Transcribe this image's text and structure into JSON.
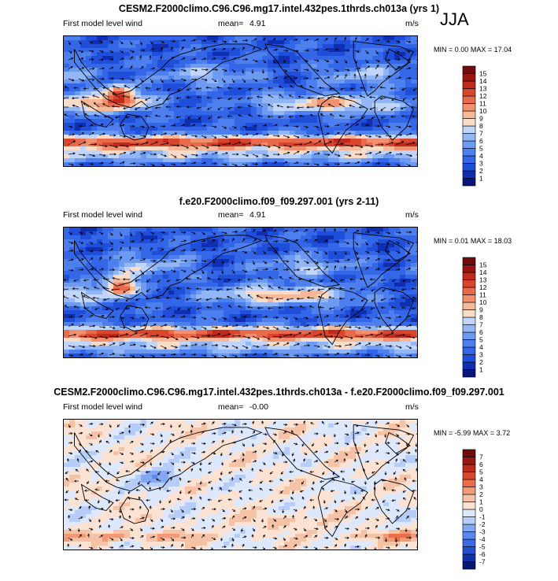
{
  "season": "JJA",
  "panels": [
    {
      "title": "CESM2.F2000climo.C96.C96.mg17.intel.432pes.1thrds.ch013a (yrs 1)",
      "variable": "First model level wind",
      "mean_label": "mean=",
      "mean": "4.91",
      "units": "m/s",
      "min_label": "MIN =",
      "min": "0.00",
      "max_label": "MAX =",
      "max": "17.04",
      "levels": [
        "1",
        "2",
        "3",
        "4",
        "5",
        "6",
        "7",
        "8",
        "9",
        "10",
        "11",
        "12",
        "13",
        "14",
        "15"
      ]
    },
    {
      "title": "f.e20.F2000climo.f09_f09.297.001 (yrs 2-11)",
      "variable": "First model level wind",
      "mean_label": "mean=",
      "mean": "4.91",
      "units": "m/s",
      "min_label": "MIN =",
      "min": "0.01",
      "max_label": "MAX =",
      "max": "18.03",
      "levels": [
        "1",
        "2",
        "3",
        "4",
        "5",
        "6",
        "7",
        "8",
        "9",
        "10",
        "11",
        "12",
        "13",
        "14",
        "15"
      ]
    },
    {
      "title": "CESM2.F2000climo.C96.C96.mg17.intel.432pes.1thrds.ch013a - f.e20.F2000climo.f09_f09.297.001",
      "variable": "First model level wind",
      "mean_label": "mean=",
      "mean": "-0.00",
      "units": "m/s",
      "min_label": "MIN =",
      "min": "-5.99",
      "max_label": "MAX =",
      "max": "3.72",
      "levels": [
        "-7",
        "-6",
        "-5",
        "-4",
        "-3",
        "-2",
        "-1",
        "0",
        "1",
        "2",
        "3",
        "4",
        "5",
        "6",
        "7"
      ]
    }
  ],
  "colors": {
    "abs_scale": [
      "#08157a",
      "#0f2fb0",
      "#1f4fd8",
      "#3466e8",
      "#4d80ee",
      "#6d9bf2",
      "#93b7f6",
      "#c1d5fa",
      "#f9dcc8",
      "#f5b99a",
      "#f0906e",
      "#e86a4a",
      "#d9462e",
      "#bf2a1c",
      "#9a1410",
      "#700c0c"
    ],
    "diff_scale": [
      "#0a1670",
      "#1230a8",
      "#2450d0",
      "#3b6ae4",
      "#5a88ee",
      "#84a9f4",
      "#b5cdf8",
      "#dde8fc",
      "#fbe2d2",
      "#f6c2a6",
      "#f19a78",
      "#e86e4c",
      "#d84830",
      "#bb2c1c",
      "#981812",
      "#700c0c"
    ]
  },
  "chart_data": [
    {
      "type": "heatmap",
      "title": "CESM2.F2000climo.C96.C96.mg17.intel.432pes.1thrds.ch013a (yrs 1)",
      "subtitle": "First model level wind",
      "units": "m/s",
      "mean": 4.91,
      "min": 0.0,
      "max": 17.04,
      "levels": [
        1,
        2,
        3,
        4,
        5,
        6,
        7,
        8,
        9,
        10,
        11,
        12,
        13,
        14,
        15
      ],
      "season": "JJA"
    },
    {
      "type": "heatmap",
      "title": "f.e20.F2000climo.f09_f09.297.001 (yrs 2-11)",
      "subtitle": "First model level wind",
      "units": "m/s",
      "mean": 4.91,
      "min": 0.01,
      "max": 18.03,
      "levels": [
        1,
        2,
        3,
        4,
        5,
        6,
        7,
        8,
        9,
        10,
        11,
        12,
        13,
        14,
        15
      ],
      "season": "JJA"
    },
    {
      "type": "heatmap",
      "title": "CESM2.F2000climo.C96.C96.mg17.intel.432pes.1thrds.ch013a - f.e20.F2000climo.f09_f09.297.001",
      "subtitle": "First model level wind",
      "units": "m/s",
      "mean": -0.0,
      "min": -5.99,
      "max": 3.72,
      "levels": [
        -7,
        -6,
        -5,
        -4,
        -3,
        -2,
        -1,
        0,
        1,
        2,
        3,
        4,
        5,
        6,
        7
      ],
      "season": "JJA"
    }
  ]
}
